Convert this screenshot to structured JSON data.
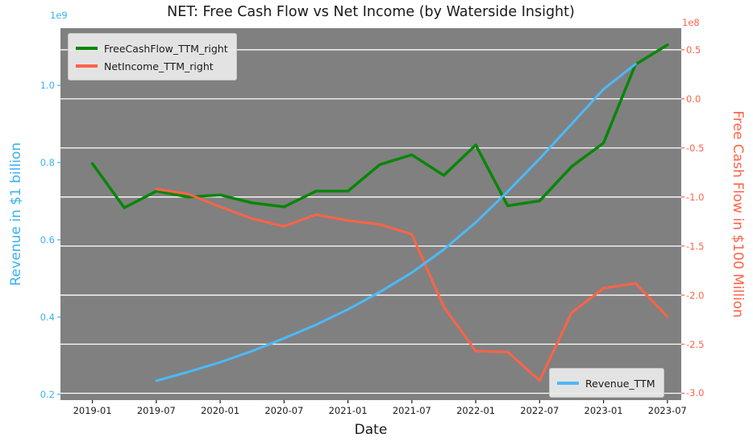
{
  "chart_data": {
    "type": "line",
    "title": "NET: Free Cash Flow vs Net Income (by Waterside Insight)",
    "xlabel": "Date",
    "ylabel_left": "Revenue in $1 billion",
    "ylabel_right": "Free Cash Flow in $100 Million",
    "offset_left": "1e9",
    "offset_right": "1e8",
    "colors": {
      "left_axis": "#3ab2f2",
      "right_axis": "#ff6347",
      "plot_bg": "#808080",
      "grid": "#ffffff",
      "title_text": "#1a1a1a",
      "xtick_text": "#1a1a1a"
    },
    "x_tick_labels": [
      "2019-01",
      "2019-07",
      "2020-01",
      "2020-07",
      "2021-01",
      "2021-07",
      "2022-01",
      "2022-07",
      "2023-01",
      "2023-07"
    ],
    "x_tick_months": [
      0,
      6,
      12,
      18,
      24,
      30,
      36,
      42,
      48,
      54
    ],
    "x_domain": [
      -3.0,
      55.3
    ],
    "left_tick_labels": [
      "0.2",
      "0.4",
      "0.6",
      "0.8",
      "1.0"
    ],
    "left_tick_values": [
      0.2,
      0.4,
      0.6,
      0.8,
      1.0
    ],
    "left_ylim": [
      0.185,
      1.148
    ],
    "right_tick_labels": [
      "0.5",
      "0.0",
      "-0.5",
      "-1.0",
      "-1.5",
      "-2.0",
      "-2.5",
      "-3.0"
    ],
    "right_tick_values": [
      0.5,
      0.0,
      -0.5,
      -1.0,
      -1.5,
      -2.0,
      -2.5,
      -3.0
    ],
    "right_ylim": [
      -3.07,
      0.72
    ],
    "series": [
      {
        "name": "FreeCashFlow_TTM_right",
        "axis": "right",
        "color": "#088608",
        "width": 3.5,
        "x": [
          0,
          3,
          6,
          9,
          12,
          15,
          18,
          21,
          24,
          27,
          30,
          33,
          36,
          39,
          42,
          45,
          48,
          51,
          54
        ],
        "y": [
          -0.66,
          -1.11,
          -0.94,
          -1.0,
          -0.98,
          -1.06,
          -1.1,
          -0.94,
          -0.94,
          -0.67,
          -0.57,
          -0.78,
          -0.47,
          -1.09,
          -1.04,
          -0.69,
          -0.45,
          0.35,
          0.55
        ]
      },
      {
        "name": "NetIncome_TTM_right",
        "axis": "right",
        "color": "#ff6347",
        "width": 3,
        "x": [
          6,
          9,
          12,
          15,
          18,
          21,
          24,
          27,
          30,
          33,
          36,
          39,
          42,
          45,
          48,
          51,
          54
        ],
        "y": [
          -0.92,
          -0.97,
          -1.1,
          -1.22,
          -1.3,
          -1.18,
          -1.24,
          -1.28,
          -1.38,
          -2.12,
          -2.57,
          -2.58,
          -2.87,
          -2.18,
          -1.93,
          -1.88,
          -2.22
        ]
      },
      {
        "name": "Revenue_TTM",
        "axis": "left",
        "color": "#4cb9f8",
        "width": 3,
        "x": [
          6,
          9,
          12,
          15,
          18,
          21,
          24,
          27,
          30,
          33,
          36,
          39,
          42,
          45,
          48,
          51
        ],
        "y": [
          0.235,
          0.258,
          0.283,
          0.312,
          0.345,
          0.38,
          0.42,
          0.465,
          0.515,
          0.575,
          0.645,
          0.725,
          0.81,
          0.9,
          0.99,
          1.055
        ]
      }
    ],
    "legend_top_items": [
      "FreeCashFlow_TTM_right",
      "NetIncome_TTM_right"
    ],
    "legend_bottom_items": [
      "Revenue_TTM"
    ]
  }
}
